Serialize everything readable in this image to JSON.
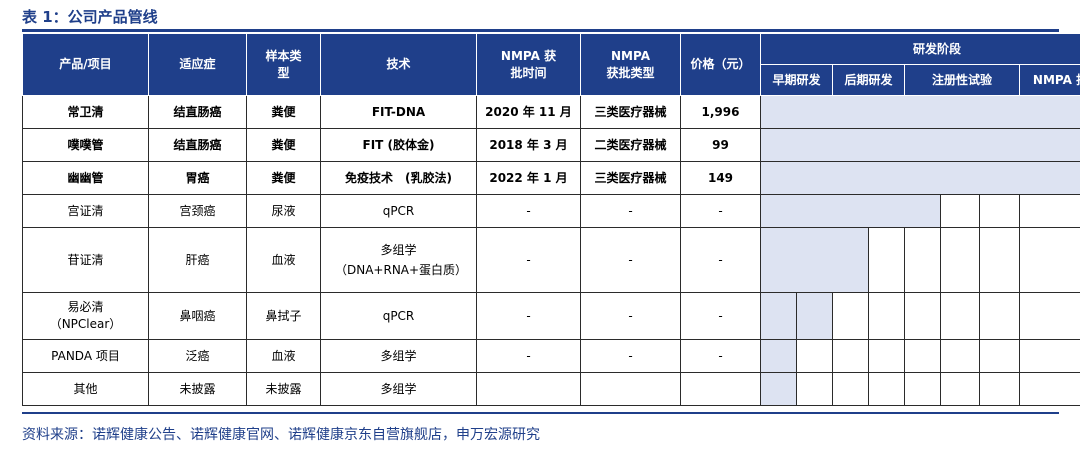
{
  "title": "表 1：公司产品管线",
  "headers": {
    "product": "产品/项目",
    "indication": "适应症",
    "sample": "样本类型",
    "tech": "技术",
    "approval_time": "NMPA 获批时间",
    "approval_type": "NMPA 获批类型",
    "price": "价格（元）",
    "stage": "研发阶段",
    "stages": [
      "早期研发",
      "后期研发",
      "注册性试验",
      "NMPA 批准"
    ]
  },
  "rows": [
    {
      "product": "常卫清",
      "indication": "结直肠癌",
      "sample": "粪便",
      "tech": "FIT-DNA",
      "time": "2020 年 11 月",
      "type": "三类医疗器械",
      "price": "1,996"
    },
    {
      "product": "噗噗管",
      "indication": "结直肠癌",
      "sample": "粪便",
      "tech": "FIT (胶体金)",
      "time": "2018 年 3 月",
      "type": "二类医疗器械",
      "price": "99"
    },
    {
      "product": "幽幽管",
      "indication": "胃癌",
      "sample": "粪便",
      "tech": "免疫技术　(乳胶法)",
      "time": "2022 年 1 月",
      "type": "三类医疗器械",
      "price": "149"
    },
    {
      "product": "宫证清",
      "indication": "宫颈癌",
      "sample": "尿液",
      "tech": "qPCR",
      "time": "-",
      "type": "-",
      "price": "-"
    },
    {
      "product": "苷证清",
      "indication": "肝癌",
      "sample": "血液",
      "tech": "多组学（DNA+RNA+蛋白质）",
      "time": "-",
      "type": "-",
      "price": "-"
    },
    {
      "product": "易必清（NPClear）",
      "indication": "鼻咽癌",
      "sample": "鼻拭子",
      "tech": "qPCR",
      "time": "-",
      "type": "-",
      "price": "-"
    },
    {
      "product": "PANDA 项目",
      "indication": "泛癌",
      "sample": "血液",
      "tech": "多组学",
      "time": "-",
      "type": "-",
      "price": "-"
    },
    {
      "product": "其他",
      "indication": "未披露",
      "sample": "未披露",
      "tech": "多组学",
      "time": "",
      "type": "",
      "price": ""
    }
  ],
  "source": "资料来源：诺辉健康公告、诺辉健康官网、诺辉健康京东自营旗舰店，申万宏源研究",
  "colors": {
    "header": "#1f3f8a",
    "progress": "#dde3f2"
  }
}
